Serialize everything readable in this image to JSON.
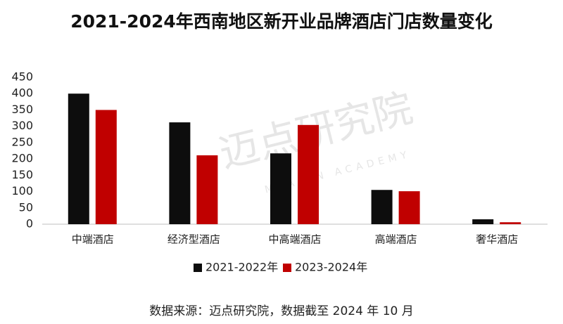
{
  "chart_data": {
    "type": "bar",
    "title": "2021-2024年西南地区新开业品牌酒店门店数量变化",
    "categories": [
      "中端酒店",
      "经济型酒店",
      "中高端酒店",
      "高端酒店",
      "奢华酒店"
    ],
    "series": [
      {
        "name": "2021-2022年",
        "color": "#0d0d0d",
        "values": [
          400,
          312,
          217,
          105,
          15
        ]
      },
      {
        "name": "2023-2024年",
        "color": "#c00000",
        "values": [
          350,
          211,
          304,
          101,
          6
        ]
      }
    ],
    "ylim": [
      0,
      450
    ],
    "yticks": [
      0,
      50,
      100,
      150,
      200,
      250,
      300,
      350,
      400,
      450
    ],
    "grid": false,
    "legend": "bottom",
    "source": "数据来源：迈点研究院，数据截至 2024 年 10 月",
    "watermark": "迈点研究院",
    "watermark_sub": "MEADIN ACADEMY"
  }
}
